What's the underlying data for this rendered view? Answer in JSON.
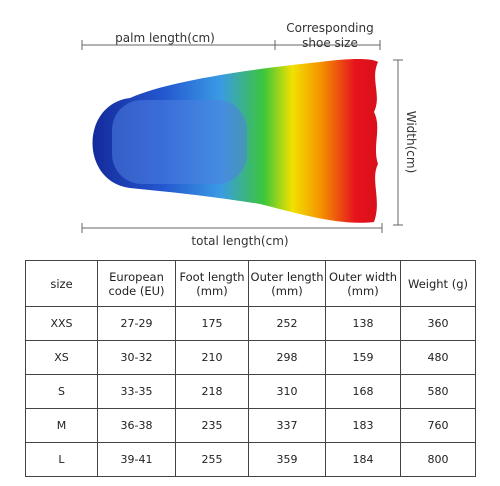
{
  "labels": {
    "palm_length": "palm length(cm)",
    "shoe_size": [
      "Corresponding",
      "shoe size"
    ],
    "width": "Width(cm)",
    "total_length": "total length(cm)"
  },
  "table": {
    "header": [
      [
        "size"
      ],
      [
        "European",
        "code (EU)"
      ],
      [
        "Foot length",
        "(mm)"
      ],
      [
        "Outer length",
        "(mm)"
      ],
      [
        "Outer width",
        "(mm)"
      ],
      [
        "Weight (g)"
      ]
    ],
    "rows": [
      [
        "XXS",
        "27-29",
        175,
        252,
        138,
        360
      ],
      [
        "XS",
        "30-32",
        210,
        298,
        159,
        480
      ],
      [
        "S",
        "33-35",
        218,
        310,
        168,
        580
      ],
      [
        "M",
        "36-38",
        235,
        337,
        183,
        760
      ],
      [
        "L",
        "39-41",
        255,
        359,
        184,
        800
      ]
    ]
  }
}
